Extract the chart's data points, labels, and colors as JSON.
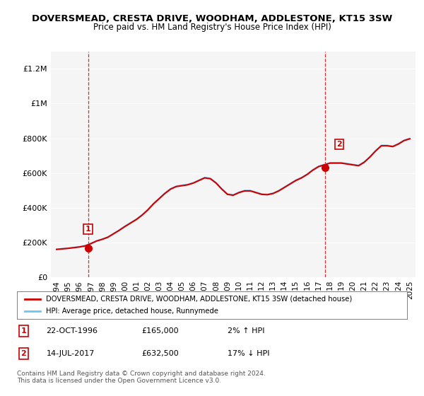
{
  "title": "DOVERSMEAD, CRESTA DRIVE, WOODHAM, ADDLESTONE, KT15 3SW",
  "subtitle": "Price paid vs. HM Land Registry's House Price Index (HPI)",
  "hpi_color": "#6ec6f5",
  "price_color": "#cc0000",
  "marker_color": "#cc0000",
  "vline_color": "#cc0000",
  "background_plot": "#f0f0f0",
  "background_fig": "#ffffff",
  "ylim": [
    0,
    1300000
  ],
  "yticks": [
    0,
    200000,
    400000,
    600000,
    800000,
    1000000,
    1200000
  ],
  "ytick_labels": [
    "£0",
    "£200K",
    "£400K",
    "£600K",
    "£800K",
    "£1M",
    "£1.2M"
  ],
  "xmin": 1993.5,
  "xmax": 2025.5,
  "xticks": [
    1994,
    1995,
    1996,
    1997,
    1998,
    1999,
    2000,
    2001,
    2002,
    2003,
    2004,
    2005,
    2006,
    2007,
    2008,
    2009,
    2010,
    2011,
    2012,
    2013,
    2014,
    2015,
    2016,
    2017,
    2018,
    2019,
    2020,
    2021,
    2022,
    2023,
    2024,
    2025
  ],
  "sale1_year": 1996.81,
  "sale1_price": 165000,
  "sale1_label": "1",
  "sale2_year": 2017.54,
  "sale2_price": 632500,
  "sale2_label": "2",
  "legend_line1": "DOVERSMEAD, CRESTA DRIVE, WOODHAM, ADDLESTONE, KT15 3SW (detached house)",
  "legend_line2": "HPI: Average price, detached house, Runnymede",
  "annotation1": "1    22-OCT-1996         £165,000         2% ↑ HPI",
  "annotation2": "2    14-JUL-2017           £632,500       17% ↓ HPI",
  "footer": "Contains HM Land Registry data © Crown copyright and database right 2024.\nThis data is licensed under the Open Government Licence v3.0.",
  "hpi_data_x": [
    1994,
    1994.5,
    1995,
    1995.5,
    1996,
    1996.5,
    1997,
    1997.5,
    1998,
    1998.5,
    1999,
    1999.5,
    2000,
    2000.5,
    2001,
    2001.5,
    2002,
    2002.5,
    2003,
    2003.5,
    2004,
    2004.5,
    2005,
    2005.5,
    2006,
    2006.5,
    2007,
    2007.5,
    2008,
    2008.5,
    2009,
    2009.5,
    2010,
    2010.5,
    2011,
    2011.5,
    2012,
    2012.5,
    2013,
    2013.5,
    2014,
    2014.5,
    2015,
    2015.5,
    2016,
    2016.5,
    2017,
    2017.5,
    2018,
    2018.5,
    2019,
    2019.5,
    2020,
    2020.5,
    2021,
    2021.5,
    2022,
    2022.5,
    2023,
    2023.5,
    2024,
    2024.5,
    2025
  ],
  "hpi_data_y": [
    162000,
    165000,
    168000,
    172000,
    176000,
    182000,
    195000,
    210000,
    220000,
    232000,
    252000,
    272000,
    295000,
    315000,
    335000,
    360000,
    390000,
    425000,
    455000,
    485000,
    510000,
    525000,
    530000,
    535000,
    545000,
    560000,
    575000,
    570000,
    545000,
    510000,
    480000,
    475000,
    490000,
    500000,
    500000,
    490000,
    480000,
    478000,
    485000,
    500000,
    520000,
    540000,
    560000,
    575000,
    595000,
    620000,
    640000,
    650000,
    660000,
    660000,
    660000,
    655000,
    650000,
    645000,
    665000,
    695000,
    730000,
    760000,
    760000,
    755000,
    770000,
    790000,
    800000
  ],
  "price_data_x": [
    1994,
    1994.5,
    1995,
    1995.5,
    1996,
    1996.5,
    1997,
    1997.5,
    1998,
    1998.5,
    1999,
    1999.5,
    2000,
    2000.5,
    2001,
    2001.5,
    2002,
    2002.5,
    2003,
    2003.5,
    2004,
    2004.5,
    2005,
    2005.5,
    2006,
    2006.5,
    2007,
    2007.5,
    2008,
    2008.5,
    2009,
    2009.5,
    2010,
    2010.5,
    2011,
    2011.5,
    2012,
    2012.5,
    2013,
    2013.5,
    2014,
    2014.5,
    2015,
    2015.5,
    2016,
    2016.5,
    2017,
    2017.5,
    2018,
    2018.5,
    2019,
    2019.5,
    2020,
    2020.5,
    2021,
    2021.5,
    2022,
    2022.5,
    2023,
    2023.5,
    2024,
    2024.5,
    2025
  ],
  "price_data_y": [
    160000,
    163000,
    166000,
    170000,
    174000,
    180000,
    193000,
    208000,
    218000,
    230000,
    250000,
    270000,
    292000,
    312000,
    332000,
    357000,
    387000,
    422000,
    452000,
    482000,
    507000,
    522000,
    527000,
    532000,
    542000,
    557000,
    572000,
    567000,
    542000,
    507000,
    477000,
    472000,
    487000,
    497000,
    497000,
    487000,
    477000,
    475000,
    482000,
    497000,
    517000,
    537000,
    557000,
    572000,
    592000,
    617000,
    637000,
    647000,
    657000,
    657000,
    657000,
    652000,
    647000,
    642000,
    662000,
    692000,
    727000,
    757000,
    757000,
    752000,
    767000,
    787000,
    797000
  ]
}
